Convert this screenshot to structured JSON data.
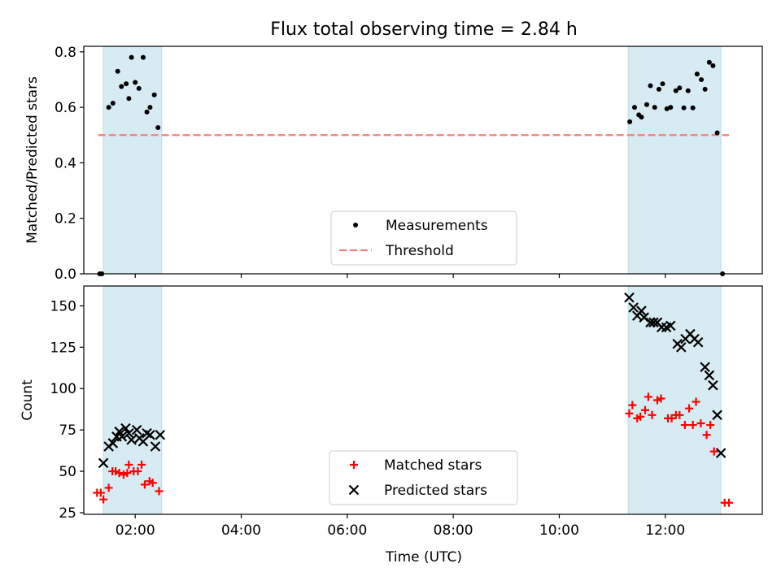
{
  "chart_data": [
    {
      "type": "scatter",
      "title": "Flux total observing time = 2.84 h",
      "xlabel": "",
      "ylabel": "Matched/Predicted stars",
      "ylim": [
        0,
        0.82
      ],
      "yticks": [
        "0.0",
        "0.2",
        "0.4",
        "0.6",
        "0.8"
      ],
      "ytick_values": [
        0,
        0.2,
        0.4,
        0.6,
        0.8
      ],
      "xlim": [
        1.03,
        13.83
      ],
      "xtick_values": [
        2,
        4,
        6,
        8,
        10,
        12
      ],
      "shaded_intervals": [
        [
          1.4,
          2.5
        ],
        [
          11.3,
          13.05
        ]
      ],
      "legend": {
        "position": "lower center",
        "entries": [
          "Measurements",
          "Threshold"
        ]
      },
      "threshold": {
        "name": "Threshold",
        "value": 0.5,
        "x_range": [
          1.3,
          13.2
        ],
        "color": "#f08080"
      },
      "series": [
        {
          "name": "Measurements",
          "color": "#000000",
          "points": [
            [
              1.33,
              0.0
            ],
            [
              1.37,
              0.0
            ],
            [
              1.5,
              0.6
            ],
            [
              1.58,
              0.615
            ],
            [
              1.67,
              0.73
            ],
            [
              1.74,
              0.675
            ],
            [
              1.83,
              0.685
            ],
            [
              1.88,
              0.632
            ],
            [
              1.93,
              0.78
            ],
            [
              2.0,
              0.69
            ],
            [
              2.07,
              0.668
            ],
            [
              2.15,
              0.78
            ],
            [
              2.22,
              0.583
            ],
            [
              2.28,
              0.6
            ],
            [
              2.36,
              0.645
            ],
            [
              2.43,
              0.527
            ],
            [
              11.33,
              0.548
            ],
            [
              11.42,
              0.6
            ],
            [
              11.5,
              0.573
            ],
            [
              11.55,
              0.565
            ],
            [
              11.65,
              0.61
            ],
            [
              11.72,
              0.678
            ],
            [
              11.8,
              0.6
            ],
            [
              11.88,
              0.665
            ],
            [
              11.95,
              0.685
            ],
            [
              12.03,
              0.595
            ],
            [
              12.1,
              0.6
            ],
            [
              12.2,
              0.66
            ],
            [
              12.27,
              0.67
            ],
            [
              12.35,
              0.598
            ],
            [
              12.43,
              0.66
            ],
            [
              12.52,
              0.598
            ],
            [
              12.6,
              0.72
            ],
            [
              12.68,
              0.7
            ],
            [
              12.75,
              0.665
            ],
            [
              12.83,
              0.762
            ],
            [
              12.9,
              0.75
            ],
            [
              12.98,
              0.508
            ],
            [
              13.08,
              0.0
            ]
          ]
        }
      ]
    },
    {
      "type": "scatter",
      "title": "",
      "xlabel": "Time (UTC)",
      "ylabel": "Count",
      "ylim": [
        24,
        162
      ],
      "yticks": [
        "25",
        "50",
        "75",
        "100",
        "125",
        "150"
      ],
      "ytick_values": [
        25,
        50,
        75,
        100,
        125,
        150
      ],
      "xlim": [
        1.03,
        13.83
      ],
      "xtick_values": [
        2,
        4,
        6,
        8,
        10,
        12
      ],
      "xticks": [
        "02:00",
        "04:00",
        "06:00",
        "08:00",
        "10:00",
        "12:00"
      ],
      "shaded_intervals": [
        [
          1.4,
          2.5
        ],
        [
          11.3,
          13.05
        ]
      ],
      "legend": {
        "position": "lower center",
        "entries": [
          "Matched stars",
          "Predicted stars"
        ]
      },
      "series": [
        {
          "name": "Matched stars",
          "marker": "plus",
          "color": "#ff0000",
          "points": [
            [
              1.28,
              37
            ],
            [
              1.35,
              37
            ],
            [
              1.4,
              33
            ],
            [
              1.5,
              40
            ],
            [
              1.57,
              50
            ],
            [
              1.63,
              50
            ],
            [
              1.7,
              49
            ],
            [
              1.78,
              48
            ],
            [
              1.85,
              49
            ],
            [
              1.88,
              54
            ],
            [
              1.97,
              50
            ],
            [
              2.05,
              50
            ],
            [
              2.12,
              54
            ],
            [
              2.18,
              42
            ],
            [
              2.27,
              44
            ],
            [
              2.33,
              43
            ],
            [
              2.45,
              38
            ],
            [
              11.32,
              85
            ],
            [
              11.38,
              90
            ],
            [
              11.47,
              82
            ],
            [
              11.53,
              83
            ],
            [
              11.62,
              87
            ],
            [
              11.68,
              95
            ],
            [
              11.75,
              84
            ],
            [
              11.85,
              93
            ],
            [
              11.92,
              94
            ],
            [
              12.05,
              82
            ],
            [
              12.12,
              82
            ],
            [
              12.2,
              84
            ],
            [
              12.27,
              84
            ],
            [
              12.37,
              78
            ],
            [
              12.45,
              88
            ],
            [
              12.52,
              78
            ],
            [
              12.58,
              92
            ],
            [
              12.67,
              79
            ],
            [
              12.78,
              72
            ],
            [
              12.85,
              78
            ],
            [
              12.92,
              62
            ],
            [
              13.12,
              31
            ],
            [
              13.2,
              31
            ]
          ]
        },
        {
          "name": "Predicted stars",
          "marker": "x",
          "color": "#000000",
          "points": [
            [
              1.4,
              55
            ],
            [
              1.5,
              65
            ],
            [
              1.58,
              67
            ],
            [
              1.65,
              71
            ],
            [
              1.7,
              74
            ],
            [
              1.75,
              71
            ],
            [
              1.82,
              76
            ],
            [
              1.88,
              73
            ],
            [
              1.93,
              69
            ],
            [
              2.03,
              75
            ],
            [
              2.08,
              70
            ],
            [
              2.15,
              68
            ],
            [
              2.22,
              73
            ],
            [
              2.28,
              72
            ],
            [
              2.38,
              65
            ],
            [
              2.47,
              72
            ],
            [
              11.32,
              155
            ],
            [
              11.4,
              149
            ],
            [
              11.47,
              144
            ],
            [
              11.55,
              147
            ],
            [
              11.6,
              143
            ],
            [
              11.72,
              140
            ],
            [
              11.78,
              140
            ],
            [
              11.85,
              140
            ],
            [
              11.93,
              137
            ],
            [
              12.02,
              137
            ],
            [
              12.1,
              138
            ],
            [
              12.23,
              127
            ],
            [
              12.3,
              125
            ],
            [
              12.38,
              130
            ],
            [
              12.47,
              133
            ],
            [
              12.55,
              130
            ],
            [
              12.62,
              128
            ],
            [
              12.75,
              113
            ],
            [
              12.83,
              108
            ],
            [
              12.9,
              102
            ],
            [
              12.98,
              84
            ],
            [
              13.05,
              61
            ]
          ]
        }
      ]
    }
  ]
}
